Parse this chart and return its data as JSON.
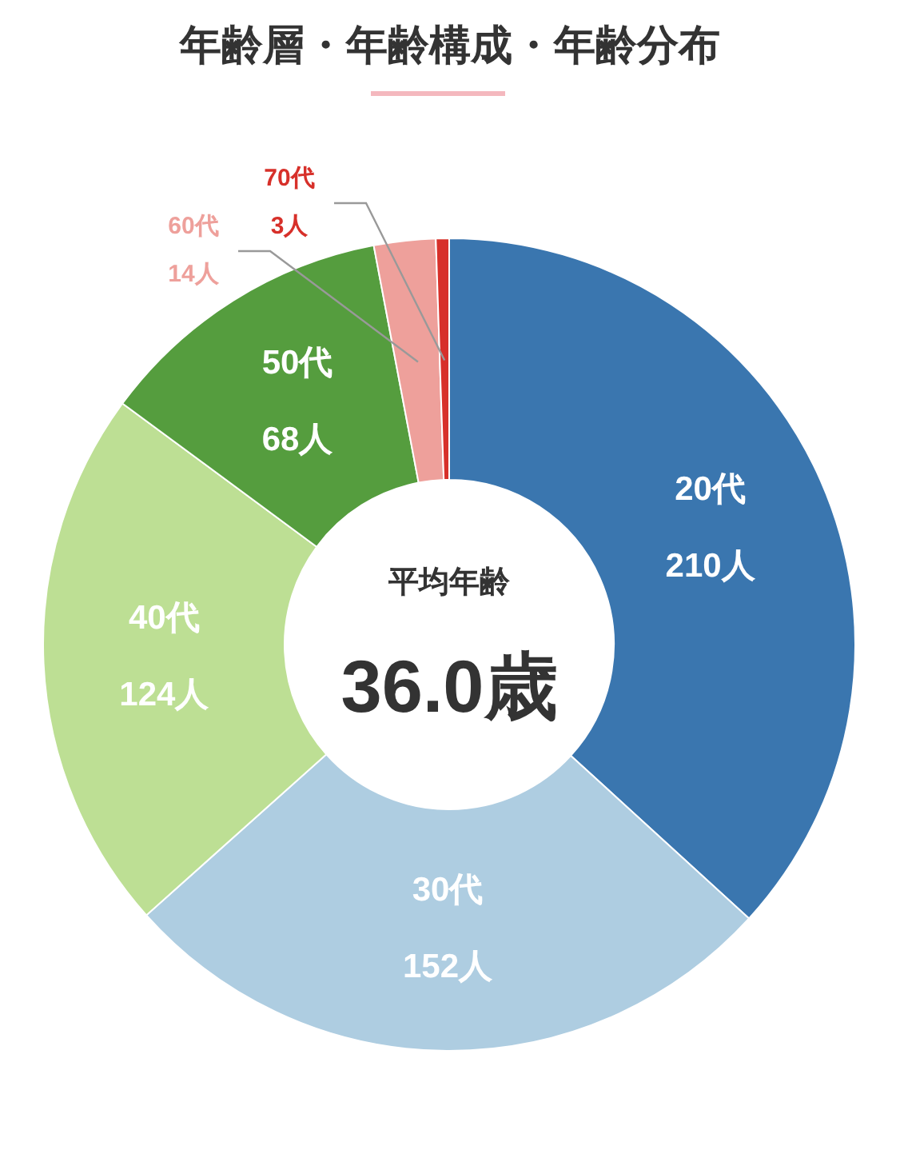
{
  "chart_data": {
    "type": "donut",
    "title": "年齢層・年齢構成・年齢分布",
    "categories": [
      "20代",
      "30代",
      "40代",
      "50代",
      "60代",
      "70代"
    ],
    "values": [
      210,
      152,
      124,
      68,
      14,
      3
    ],
    "colors": [
      "#3a76af",
      "#aecde1",
      "#bddf94",
      "#559d3e",
      "#eea09b",
      "#d7302a"
    ],
    "value_labels": [
      "210人",
      "152人",
      "124人",
      "68人",
      "14人",
      "3人"
    ],
    "annotations": [
      "平均年齢",
      "36.0歳"
    ]
  }
}
